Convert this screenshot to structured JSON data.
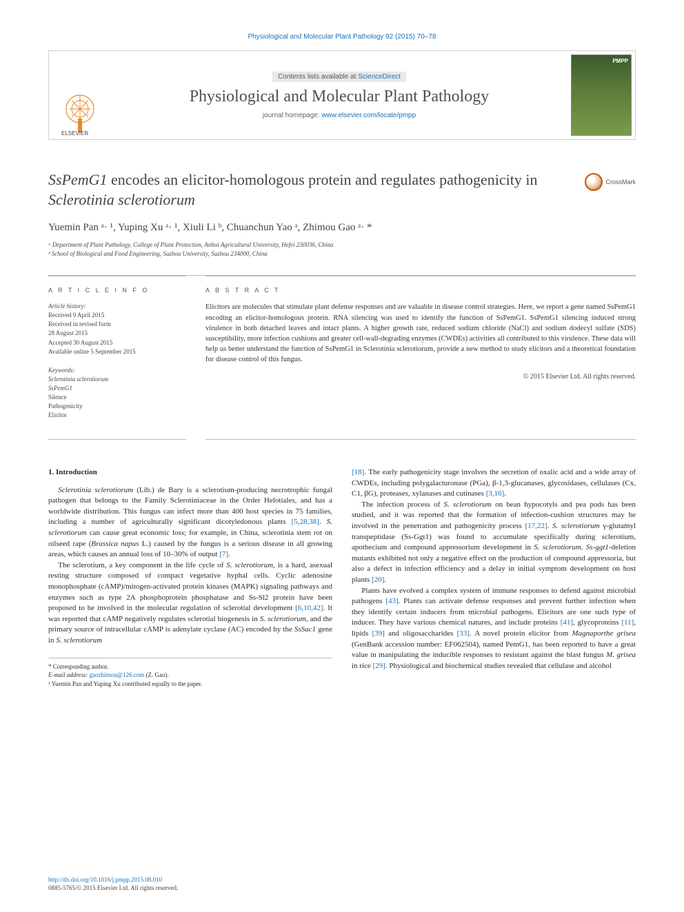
{
  "running_head": "Physiological and Molecular Plant Pathology 92 (2015) 70–78",
  "masthead": {
    "contents_prefix": "Contents lists available at ",
    "contents_link": "ScienceDirect",
    "journal": "Physiological and Molecular Plant Pathology",
    "homepage_prefix": "journal homepage: ",
    "homepage_url": "www.elsevier.com/locate/pmpp",
    "publisher_label": "ELSEVIER",
    "cover_label": "PMPP"
  },
  "title": {
    "html_parts": [
      {
        "t": "SsPemG1",
        "ital": true
      },
      {
        "t": " encodes an elicitor-homologous protein and regulates pathogenicity in ",
        "ital": false
      },
      {
        "t": "Sclerotinia sclerotiorum",
        "ital": true
      }
    ],
    "crossmark": "CrossMark"
  },
  "authors_line": "Yuemin Pan ᵃ· ¹, Yuping Xu ᵃ· ¹, Xiuli Li ᵇ, Chuanchun Yao ᵃ, Zhimou Gao ᵃ· *",
  "affiliations": [
    "ᵃ Department of Plant Pathology, College of Plant Protection, Anhui Agricultural University, Hefei 230036, China",
    "ᵇ School of Biological and Food Engineering, Suzhou University, Suzhou 234000, China"
  ],
  "article_info": {
    "head": "A R T I C L E   I N F O",
    "history_label": "Article history:",
    "history": [
      "Received 9 April 2015",
      "Received in revised form",
      "28 August 2015",
      "Accepted 30 August 2015",
      "Available online 5 September 2015"
    ],
    "keywords_label": "Keywords:",
    "keywords": [
      "Sclerotinia sclerotiorum",
      "SsPemG1",
      "Silence",
      "Pathogenicity",
      "Elicitor"
    ]
  },
  "abstract": {
    "head": "A B S T R A C T",
    "text": "Elicitors are molecules that stimulate plant defense responses and are valuable in disease control strategies. Here, we report a gene named SsPemG1 encoding an elicitor-homologous protein. RNA silencing was used to identify the function of SsPemG1. SsPemG1 silencing induced strong virulence in both detached leaves and intact plants. A higher growth rate, reduced sodium chloride (NaCl) and sodium dodecyl sulfate (SDS) susceptibility, more infection cushions and greater cell-wall-degrading enzymes (CWDEs) activities all contributed to this virulence. These data will help us better understand the function of SsPemG1 in Sclerotinia sclerotiorum, provide a new method to study elicitors and a theoretical foundation for disease control of this fungus.",
    "copyright": "© 2015 Elsevier Ltd. All rights reserved."
  },
  "body": {
    "section_head": "1. Introduction",
    "left_paras": [
      "Sclerotinia sclerotiorum (Lib.) de Bary is a sclerotium-producing necrotrophic fungal pathogen that belongs to the Family Sclerotiniaceae in the Order Helotiales, and has a worldwide distribution. This fungus can infect more than 400 host species in 75 families, including a number of agriculturally significant dicotyledonous plants [5,28,38]. S. sclerotiorum can cause great economic loss; for example, in China, sclerotinia stem rot on oilseed rape (Brassica napus L.) caused by the fungus is a serious disease in all growing areas, which causes an annual loss of 10–30% of output [7].",
      "The sclerotium, a key component in the life cycle of S. sclerotiorum, is a hard, asexual resting structure composed of compact vegetative hyphal cells. Cyclic adenosine monophosphate (cAMP)/mitogen-activated protein kinases (MAPK) signaling pathways and enzymes such as type 2A phosphoprotein phosphatase and Ss-Sl2 protein have been proposed to be involved in the molecular regulation of sclerotial development [6,10,42]. It was reported that cAMP negatively regulates sclerotial biogenesis in S. sclerotiorum, and the primary source of intracellular cAMP is adenylate cyclase (AC) encoded by the SsSac1 gene in S. sclerotiorum"
    ],
    "right_paras": [
      "[18]. The early pathogenicity stage involves the secretion of oxalic acid and a wide array of CWDEs, including polygalacturonase (PGa), β-1,3-glucanases, glycosidases, cellulases (Cx, C1, βG), proteases, xylanases and cutinases [3,16].",
      "The infection process of S. sclerotiorum on bean hypocotyls and pea pods has been studied, and it was reported that the formation of infection-cushion structures may be involved in the penetration and pathogenicity process [17,22]. S. sclerotiorum γ-glutamyl transpeptidase (Ss-Ggt1) was found to accumulate specifically during sclerotium, apothecium and compound appressorium development in S. sclerotiorum. Ss-ggt1-deletion mutants exhibited not only a negative effect on the production of compound appressoria, but also a defect in infection efficiency and a delay in initial symptom development on host plants [20].",
      "Plants have evolved a complex system of immune responses to defend against microbial pathogens [43]. Plants can activate defense responses and prevent further infection when they identify certain inducers from microbial pathogens. Elicitors are one such type of inducer. They have various chemical natures, and include proteins [41], glycoproteins [11], lipids [39] and oligosaccharides [33]. A novel protein elicitor from Magnaporthe grisea (GenBank accession number: EF062504), named PemG1, has been reported to have a great value in manipulating the inducible responses to resistant against the blast fungus M. grisea in rice [29]. Physiological and biochemical studies revealed that cellulase and alcohol"
    ]
  },
  "footnotes": {
    "corr": "* Corresponding author.",
    "email_label": "E-mail address:",
    "email": "gaozhimou@126.com",
    "email_who": "(Z. Gao).",
    "contrib": "¹ Yuemin Pan and Yuping Xu contributed equally to the paper."
  },
  "doi": {
    "url": "http://dx.doi.org/10.1016/j.pmpp.2015.08.010",
    "issn": "0885-5765/© 2015 Elsevier Ltd. All rights reserved."
  },
  "colors": {
    "link": "#1b6fb5",
    "rule": "#bbbbbb",
    "text": "#2a2a2a"
  }
}
